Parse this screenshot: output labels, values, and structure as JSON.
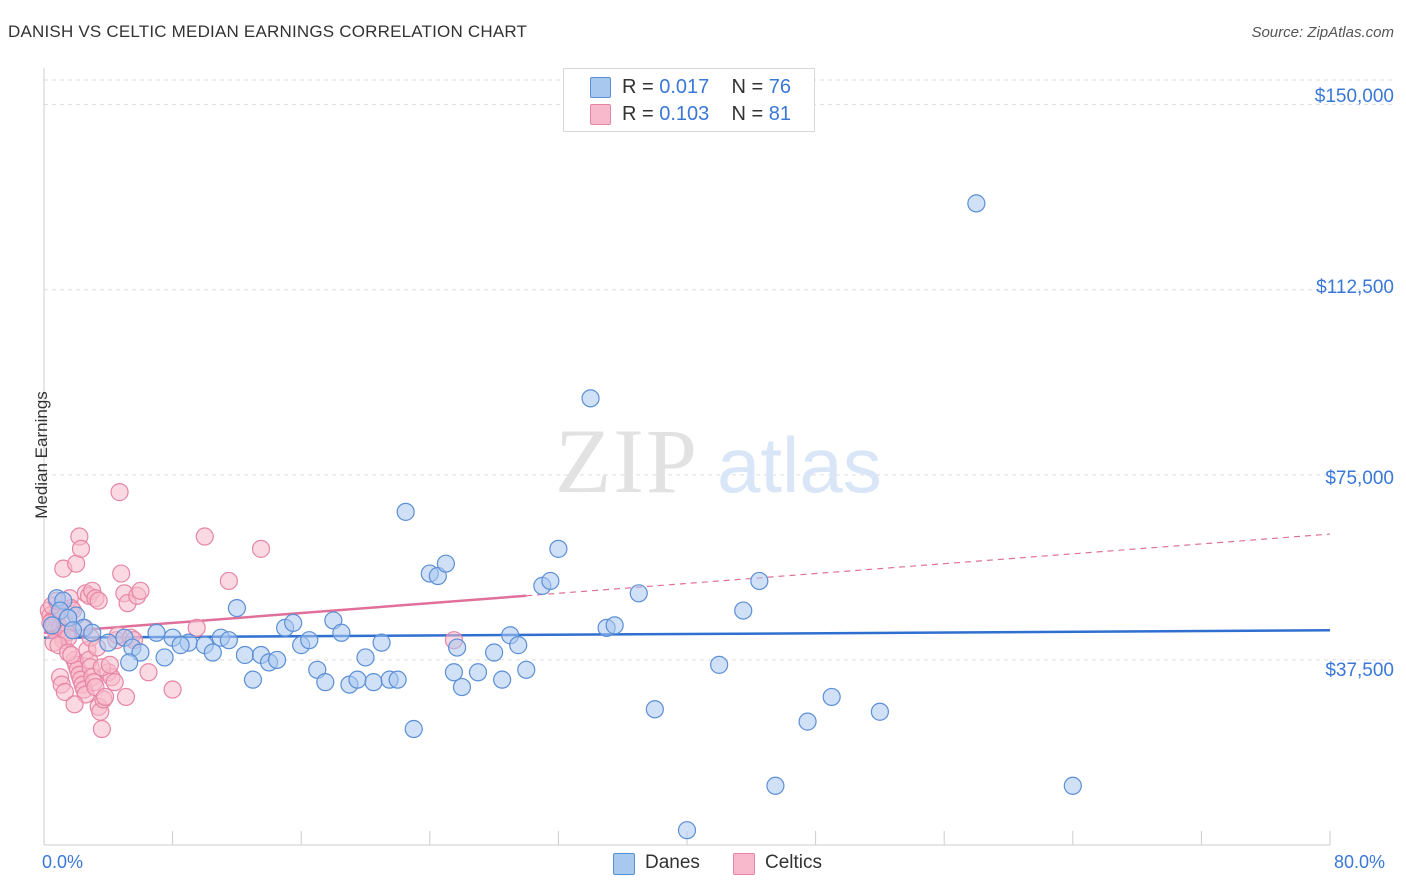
{
  "header": {
    "title": "DANISH VS CELTIC MEDIAN EARNINGS CORRELATION CHART",
    "source": "Source: ZipAtlas.com"
  },
  "watermark": {
    "zip": "ZIP",
    "atlas": "atlas"
  },
  "colors": {
    "danes": "#a9c8f0",
    "danes_stroke": "#5b8fd6",
    "danes_line": "#2f6fd0",
    "celtics": "#f7b9cb",
    "celtics_stroke": "#e686a6",
    "celtics_line": "#e0709a",
    "grid": "#dddddd",
    "accent_text": "#3a78d8"
  },
  "legend": {
    "danes": {
      "r_label": "R =",
      "r_value": "0.017",
      "n_label": "N =",
      "n_value": "76"
    },
    "celtics": {
      "r_label": "R =",
      "r_value": "0.103",
      "n_label": "N =",
      "n_value": "81"
    }
  },
  "chart_data": {
    "type": "scatter",
    "title": "DANISH VS CELTIC MEDIAN EARNINGS CORRELATION CHART",
    "xlabel": "",
    "ylabel": "Median Earnings",
    "xlim": [
      0,
      80
    ],
    "ylim": [
      0,
      155000
    ],
    "x_tick_labels": [
      "0.0%",
      "80.0%"
    ],
    "y_ticks": [
      37500,
      75000,
      112500,
      150000
    ],
    "y_tick_labels": [
      "$37,500",
      "$75,000",
      "$112,500",
      "$150,000"
    ],
    "grid": true,
    "legend_position": "top-center",
    "series": [
      {
        "name": "Danes",
        "r": 0.017,
        "n": 76,
        "trend": {
          "x": [
            0,
            80
          ],
          "y": [
            42000,
            43500
          ],
          "dashed_from": null
        },
        "points": [
          [
            0.8,
            50000
          ],
          [
            1.2,
            49500
          ],
          [
            1.0,
            47500
          ],
          [
            2.0,
            46500
          ],
          [
            1.5,
            46000
          ],
          [
            2.5,
            44000
          ],
          [
            3.0,
            43000
          ],
          [
            4.0,
            41000
          ],
          [
            5.0,
            42000
          ],
          [
            5.5,
            40000
          ],
          [
            6.0,
            39000
          ],
          [
            5.3,
            37000
          ],
          [
            7.0,
            43000
          ],
          [
            7.5,
            38000
          ],
          [
            8.0,
            42000
          ],
          [
            9.0,
            41000
          ],
          [
            8.5,
            40500
          ],
          [
            10.0,
            40500
          ],
          [
            10.5,
            39000
          ],
          [
            11.0,
            42000
          ],
          [
            11.5,
            41500
          ],
          [
            12.0,
            48000
          ],
          [
            12.5,
            38500
          ],
          [
            13.0,
            33500
          ],
          [
            13.5,
            38500
          ],
          [
            14.0,
            37000
          ],
          [
            14.5,
            37500
          ],
          [
            15.0,
            44000
          ],
          [
            15.5,
            45000
          ],
          [
            16.0,
            40500
          ],
          [
            16.5,
            41500
          ],
          [
            17.0,
            35500
          ],
          [
            17.5,
            33000
          ],
          [
            18.0,
            45500
          ],
          [
            18.5,
            43000
          ],
          [
            19.0,
            32500
          ],
          [
            19.5,
            33500
          ],
          [
            20.0,
            38000
          ],
          [
            20.5,
            33000
          ],
          [
            21.0,
            41000
          ],
          [
            21.5,
            33500
          ],
          [
            22.0,
            33500
          ],
          [
            22.5,
            67500
          ],
          [
            23.0,
            23500
          ],
          [
            24.0,
            55000
          ],
          [
            24.5,
            54500
          ],
          [
            25.0,
            57000
          ],
          [
            25.5,
            35000
          ],
          [
            25.7,
            40000
          ],
          [
            26.0,
            32000
          ],
          [
            27.0,
            35000
          ],
          [
            28.0,
            39000
          ],
          [
            28.5,
            33500
          ],
          [
            29.0,
            42500
          ],
          [
            29.5,
            40500
          ],
          [
            30.0,
            35500
          ],
          [
            31.0,
            52500
          ],
          [
            31.5,
            53500
          ],
          [
            32.0,
            60000
          ],
          [
            34.0,
            90500
          ],
          [
            35.0,
            44000
          ],
          [
            35.5,
            44500
          ],
          [
            37.0,
            51000
          ],
          [
            38.0,
            27500
          ],
          [
            40.0,
            3000
          ],
          [
            42.0,
            36500
          ],
          [
            43.5,
            47500
          ],
          [
            44.5,
            53500
          ],
          [
            45.5,
            12000
          ],
          [
            47.5,
            25000
          ],
          [
            49.0,
            30000
          ],
          [
            52.0,
            27000
          ],
          [
            58.0,
            130000
          ],
          [
            64.0,
            12000
          ],
          [
            0.5,
            44500
          ],
          [
            1.8,
            43500
          ]
        ]
      },
      {
        "name": "Celtics",
        "r": 0.103,
        "n": 81,
        "trend": {
          "x": [
            0,
            80
          ],
          "y": [
            43000,
            63000
          ],
          "dashed_from": 30
        },
        "points": [
          [
            0.3,
            47500
          ],
          [
            0.4,
            46500
          ],
          [
            0.5,
            45500
          ],
          [
            0.6,
            44500
          ],
          [
            0.7,
            43500
          ],
          [
            0.8,
            46000
          ],
          [
            0.9,
            47000
          ],
          [
            1.0,
            44000
          ],
          [
            1.1,
            42500
          ],
          [
            1.2,
            41500
          ],
          [
            0.5,
            48500
          ],
          [
            0.8,
            49500
          ],
          [
            1.3,
            45000
          ],
          [
            1.4,
            43000
          ],
          [
            1.5,
            42000
          ],
          [
            1.6,
            50000
          ],
          [
            1.7,
            48000
          ],
          [
            1.8,
            47500
          ],
          [
            1.9,
            37500
          ],
          [
            2.0,
            36500
          ],
          [
            2.1,
            35500
          ],
          [
            2.2,
            34500
          ],
          [
            2.3,
            33500
          ],
          [
            2.4,
            32500
          ],
          [
            2.5,
            31500
          ],
          [
            2.6,
            30500
          ],
          [
            1.2,
            56000
          ],
          [
            2.0,
            57000
          ],
          [
            2.2,
            62500
          ],
          [
            2.3,
            60000
          ],
          [
            2.6,
            51000
          ],
          [
            2.8,
            50500
          ],
          [
            3.0,
            51500
          ],
          [
            3.2,
            50000
          ],
          [
            3.4,
            49500
          ],
          [
            2.7,
            39500
          ],
          [
            2.8,
            37500
          ],
          [
            2.9,
            36000
          ],
          [
            3.0,
            34000
          ],
          [
            3.1,
            33000
          ],
          [
            3.2,
            32000
          ],
          [
            3.4,
            28000
          ],
          [
            3.5,
            27000
          ],
          [
            3.6,
            23500
          ],
          [
            3.7,
            29500
          ],
          [
            3.8,
            30000
          ],
          [
            4.0,
            35000
          ],
          [
            4.2,
            34000
          ],
          [
            4.4,
            33000
          ],
          [
            4.5,
            41500
          ],
          [
            4.6,
            42500
          ],
          [
            4.7,
            71500
          ],
          [
            4.8,
            55000
          ],
          [
            5.0,
            51000
          ],
          [
            5.2,
            49000
          ],
          [
            5.4,
            42000
          ],
          [
            5.6,
            41500
          ],
          [
            5.8,
            50500
          ],
          [
            6.0,
            51500
          ],
          [
            6.5,
            35000
          ],
          [
            8.0,
            31500
          ],
          [
            9.5,
            44000
          ],
          [
            10.0,
            62500
          ],
          [
            11.5,
            53500
          ],
          [
            13.5,
            60000
          ],
          [
            25.5,
            41500
          ],
          [
            0.6,
            41000
          ],
          [
            0.9,
            40500
          ],
          [
            1.5,
            39000
          ],
          [
            1.7,
            38500
          ],
          [
            2.4,
            44000
          ],
          [
            2.9,
            42000
          ],
          [
            3.3,
            40000
          ],
          [
            3.6,
            36000
          ],
          [
            1.0,
            34000
          ],
          [
            1.1,
            32500
          ],
          [
            1.3,
            31000
          ],
          [
            4.1,
            36500
          ],
          [
            5.1,
            30000
          ],
          [
            0.4,
            45000
          ],
          [
            1.9,
            28500
          ]
        ]
      }
    ]
  },
  "bottom_legend": {
    "danes": "Danes",
    "celtics": "Celtics"
  }
}
